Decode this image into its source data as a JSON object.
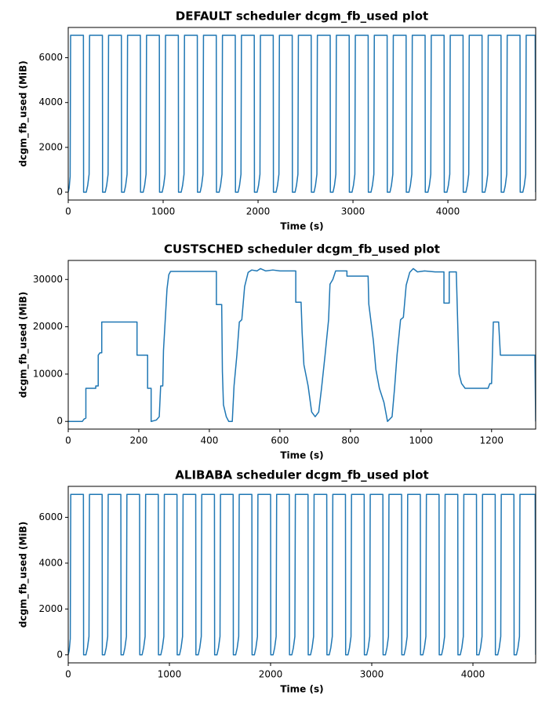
{
  "chart_data": [
    {
      "type": "line",
      "title": "DEFAULT scheduler dcgm_fb_used plot",
      "xlabel": "Time (s)",
      "ylabel": "dcgm_fb_used (MiB)",
      "color": "#1f77b4",
      "xlim": [
        0,
        4925
      ],
      "ylim": [
        -350,
        7350
      ],
      "xticks": [
        0,
        1000,
        2000,
        3000,
        4000
      ],
      "yticks": [
        0,
        2000,
        4000,
        6000
      ],
      "x": [
        0,
        10,
        20,
        25,
        160,
        162,
        190,
        205,
        220,
        225,
        360,
        362,
        390,
        405,
        420,
        425,
        560,
        562,
        590,
        605,
        620,
        625,
        760,
        762,
        790,
        805,
        820,
        825,
        960,
        962,
        990,
        1005,
        1020,
        1025,
        1160,
        1162,
        1190,
        1205,
        1220,
        1225,
        1360,
        1362,
        1390,
        1405,
        1420,
        1425,
        1560,
        1562,
        1590,
        1605,
        1620,
        1625,
        1760,
        1762,
        1790,
        1805,
        1820,
        1825,
        1960,
        1962,
        1990,
        2005,
        2020,
        2025,
        2160,
        2162,
        2190,
        2205,
        2220,
        2225,
        2360,
        2362,
        2390,
        2405,
        2420,
        2425,
        2560,
        2562,
        2590,
        2605,
        2620,
        2625,
        2760,
        2762,
        2790,
        2805,
        2820,
        2825,
        2960,
        2962,
        2990,
        3005,
        3020,
        3025,
        3160,
        3162,
        3190,
        3205,
        3220,
        3225,
        3360,
        3362,
        3390,
        3405,
        3420,
        3425,
        3560,
        3562,
        3590,
        3605,
        3620,
        3625,
        3760,
        3762,
        3790,
        3805,
        3820,
        3825,
        3960,
        3962,
        3990,
        4005,
        4020,
        4025,
        4160,
        4162,
        4190,
        4205,
        4220,
        4225,
        4360,
        4362,
        4390,
        4405,
        4420,
        4425,
        4560,
        4562,
        4590,
        4605,
        4620,
        4625,
        4760,
        4762,
        4790,
        4805,
        4820,
        4825,
        4920,
        4925
      ],
      "values": [
        0,
        200,
        700,
        7000,
        7000,
        0,
        0,
        300,
        800,
        7000,
        7000,
        0,
        0,
        300,
        800,
        7000,
        7000,
        0,
        0,
        300,
        800,
        7000,
        7000,
        0,
        0,
        300,
        800,
        7000,
        7000,
        0,
        0,
        300,
        800,
        7000,
        7000,
        0,
        0,
        300,
        800,
        7000,
        7000,
        0,
        0,
        300,
        800,
        7000,
        7000,
        0,
        0,
        300,
        800,
        7000,
        7000,
        0,
        0,
        300,
        800,
        7000,
        7000,
        0,
        0,
        300,
        800,
        7000,
        7000,
        0,
        0,
        300,
        800,
        7000,
        7000,
        0,
        0,
        300,
        800,
        7000,
        7000,
        0,
        0,
        300,
        800,
        7000,
        7000,
        0,
        0,
        300,
        800,
        7000,
        7000,
        0,
        0,
        300,
        800,
        7000,
        7000,
        0,
        0,
        300,
        800,
        7000,
        7000,
        0,
        0,
        300,
        800,
        7000,
        7000,
        0,
        0,
        300,
        800,
        7000,
        7000,
        0,
        0,
        300,
        800,
        7000,
        7000,
        0,
        0,
        300,
        800,
        7000,
        7000,
        0,
        0,
        300,
        800,
        7000,
        7000,
        0,
        0,
        300,
        800,
        7000,
        7000,
        0,
        0,
        300,
        800,
        7000,
        7000,
        0,
        0,
        300,
        800,
        7000,
        7000,
        0
      ]
    },
    {
      "type": "line",
      "title": "CUSTSCHED scheduler dcgm_fb_used plot",
      "xlabel": "Time (s)",
      "ylabel": "dcgm_fb_used (MiB)",
      "color": "#1f77b4",
      "xlim": [
        0,
        1325
      ],
      "ylim": [
        -1620,
        34020
      ],
      "xticks": [
        0,
        200,
        400,
        600,
        800,
        1000,
        1200
      ],
      "yticks": [
        0,
        10000,
        20000,
        30000
      ],
      "x": [
        0,
        40,
        45,
        50,
        50,
        78,
        78,
        85,
        85,
        90,
        95,
        95,
        195,
        195,
        225,
        225,
        235,
        235,
        250,
        258,
        262,
        268,
        270,
        275,
        280,
        285,
        290,
        420,
        420,
        435,
        437,
        440,
        448,
        455,
        465,
        470,
        478,
        485,
        492,
        500,
        510,
        520,
        535,
        545,
        560,
        580,
        600,
        645,
        645,
        660,
        663,
        668,
        680,
        690,
        700,
        710,
        718,
        728,
        738,
        742,
        750,
        758,
        790,
        790,
        850,
        852,
        865,
        872,
        882,
        895,
        905,
        918,
        925,
        932,
        942,
        950,
        958,
        968,
        978,
        990,
        1010,
        1040,
        1065,
        1065,
        1080,
        1080,
        1100,
        1108,
        1115,
        1125,
        1190,
        1195,
        1200,
        1205,
        1220,
        1225,
        1323,
        1325
      ],
      "values": [
        0,
        0,
        500,
        700,
        7000,
        7000,
        7500,
        7500,
        14000,
        14500,
        14500,
        21000,
        21000,
        14000,
        14000,
        7000,
        7000,
        0,
        300,
        1000,
        7500,
        7500,
        15000,
        21500,
        28000,
        31000,
        31700,
        31700,
        24700,
        24700,
        10500,
        3500,
        1000,
        0,
        0,
        7500,
        14000,
        21000,
        21500,
        28500,
        31500,
        32000,
        31800,
        32300,
        31800,
        32000,
        31800,
        31800,
        25200,
        25200,
        18800,
        12000,
        7500,
        2000,
        1000,
        2000,
        7000,
        14000,
        21500,
        29000,
        30000,
        31800,
        31800,
        30700,
        30700,
        24800,
        17000,
        11000,
        7000,
        4000,
        0,
        1000,
        7000,
        14000,
        21500,
        22000,
        28800,
        31500,
        32300,
        31600,
        31800,
        31600,
        31600,
        25000,
        25000,
        31600,
        31600,
        10000,
        8000,
        7000,
        7000,
        8000,
        8000,
        21000,
        21000,
        14000,
        14000,
        0
      ]
    },
    {
      "type": "line",
      "title": "ALIBABA scheduler dcgm_fb_used plot",
      "xlabel": "Time (s)",
      "ylabel": "dcgm_fb_used (MiB)",
      "color": "#1f77b4",
      "xlim": [
        0,
        4620
      ],
      "ylim": [
        -350,
        7350
      ],
      "xticks": [
        0,
        1000,
        2000,
        3000,
        4000
      ],
      "yticks": [
        0,
        2000,
        4000,
        6000
      ],
      "x": [
        0,
        10,
        20,
        25,
        150,
        152,
        175,
        190,
        205,
        210,
        335,
        337,
        360,
        375,
        390,
        395,
        520,
        522,
        545,
        560,
        575,
        580,
        705,
        707,
        730,
        745,
        760,
        765,
        890,
        892,
        915,
        930,
        945,
        950,
        1075,
        1077,
        1100,
        1115,
        1130,
        1135,
        1260,
        1262,
        1285,
        1300,
        1315,
        1320,
        1445,
        1447,
        1470,
        1485,
        1500,
        1505,
        1630,
        1632,
        1655,
        1670,
        1685,
        1690,
        1815,
        1817,
        1840,
        1855,
        1870,
        1875,
        2000,
        2002,
        2025,
        2040,
        2055,
        2060,
        2185,
        2187,
        2210,
        2225,
        2240,
        2245,
        2370,
        2372,
        2395,
        2410,
        2425,
        2430,
        2555,
        2557,
        2580,
        2595,
        2610,
        2615,
        2740,
        2742,
        2765,
        2780,
        2795,
        2800,
        2925,
        2927,
        2950,
        2965,
        2980,
        2985,
        3110,
        3112,
        3135,
        3150,
        3165,
        3170,
        3295,
        3297,
        3320,
        3335,
        3350,
        3355,
        3480,
        3482,
        3505,
        3520,
        3535,
        3540,
        3665,
        3667,
        3690,
        3705,
        3720,
        3725,
        3850,
        3852,
        3875,
        3890,
        3905,
        3910,
        4035,
        4037,
        4060,
        4075,
        4090,
        4095,
        4220,
        4222,
        4245,
        4260,
        4275,
        4280,
        4405,
        4407,
        4430,
        4445,
        4460,
        4465,
        4615,
        4620
      ],
      "values": [
        0,
        200,
        700,
        7000,
        7000,
        0,
        0,
        300,
        800,
        7000,
        7000,
        0,
        0,
        300,
        800,
        7000,
        7000,
        0,
        0,
        300,
        800,
        7000,
        7000,
        0,
        0,
        300,
        800,
        7000,
        7000,
        0,
        0,
        300,
        800,
        7000,
        7000,
        0,
        0,
        300,
        800,
        7000,
        7000,
        0,
        0,
        300,
        800,
        7000,
        7000,
        0,
        0,
        300,
        800,
        7000,
        7000,
        0,
        0,
        300,
        800,
        7000,
        7000,
        0,
        0,
        300,
        800,
        7000,
        7000,
        0,
        0,
        300,
        800,
        7000,
        7000,
        0,
        0,
        300,
        800,
        7000,
        7000,
        0,
        0,
        300,
        800,
        7000,
        7000,
        0,
        0,
        300,
        800,
        7000,
        7000,
        0,
        0,
        300,
        800,
        7000,
        7000,
        0,
        0,
        300,
        800,
        7000,
        7000,
        0,
        0,
        300,
        800,
        7000,
        7000,
        0,
        0,
        300,
        800,
        7000,
        7000,
        0,
        0,
        300,
        800,
        7000,
        7000,
        0,
        0,
        300,
        800,
        7000,
        7000,
        0,
        0,
        300,
        800,
        7000,
        7000,
        0,
        0,
        300,
        800,
        7000,
        7000,
        0,
        0,
        300,
        800,
        7000,
        7000,
        0,
        0,
        300,
        800,
        7000,
        7000,
        0
      ]
    }
  ]
}
